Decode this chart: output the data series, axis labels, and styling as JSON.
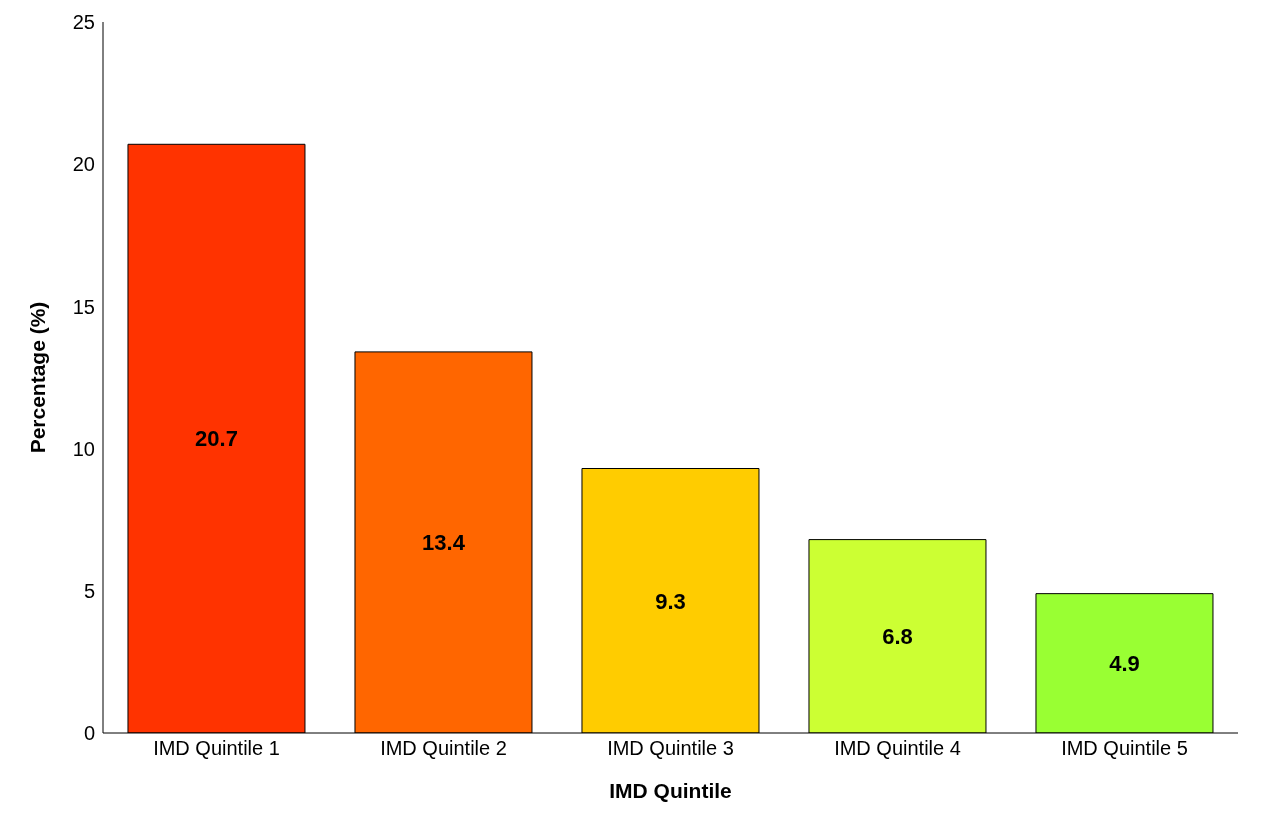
{
  "chart_data": {
    "type": "bar",
    "xlabel": "IMD Quintile",
    "ylabel": "Percentage (%)",
    "categories": [
      "IMD Quintile 1",
      "IMD Quintile 2",
      "IMD Quintile 3",
      "IMD Quintile 4",
      "IMD Quintile 5"
    ],
    "values": [
      20.7,
      13.4,
      9.3,
      6.8,
      4.9
    ],
    "colors": [
      "#ff3300",
      "#ff6600",
      "#ffcc00",
      "#ccff33",
      "#99ff33"
    ],
    "ylim": [
      0,
      25
    ],
    "yticks": [
      0,
      5,
      10,
      15,
      20,
      25
    ],
    "grid": false,
    "data_labels": true
  }
}
